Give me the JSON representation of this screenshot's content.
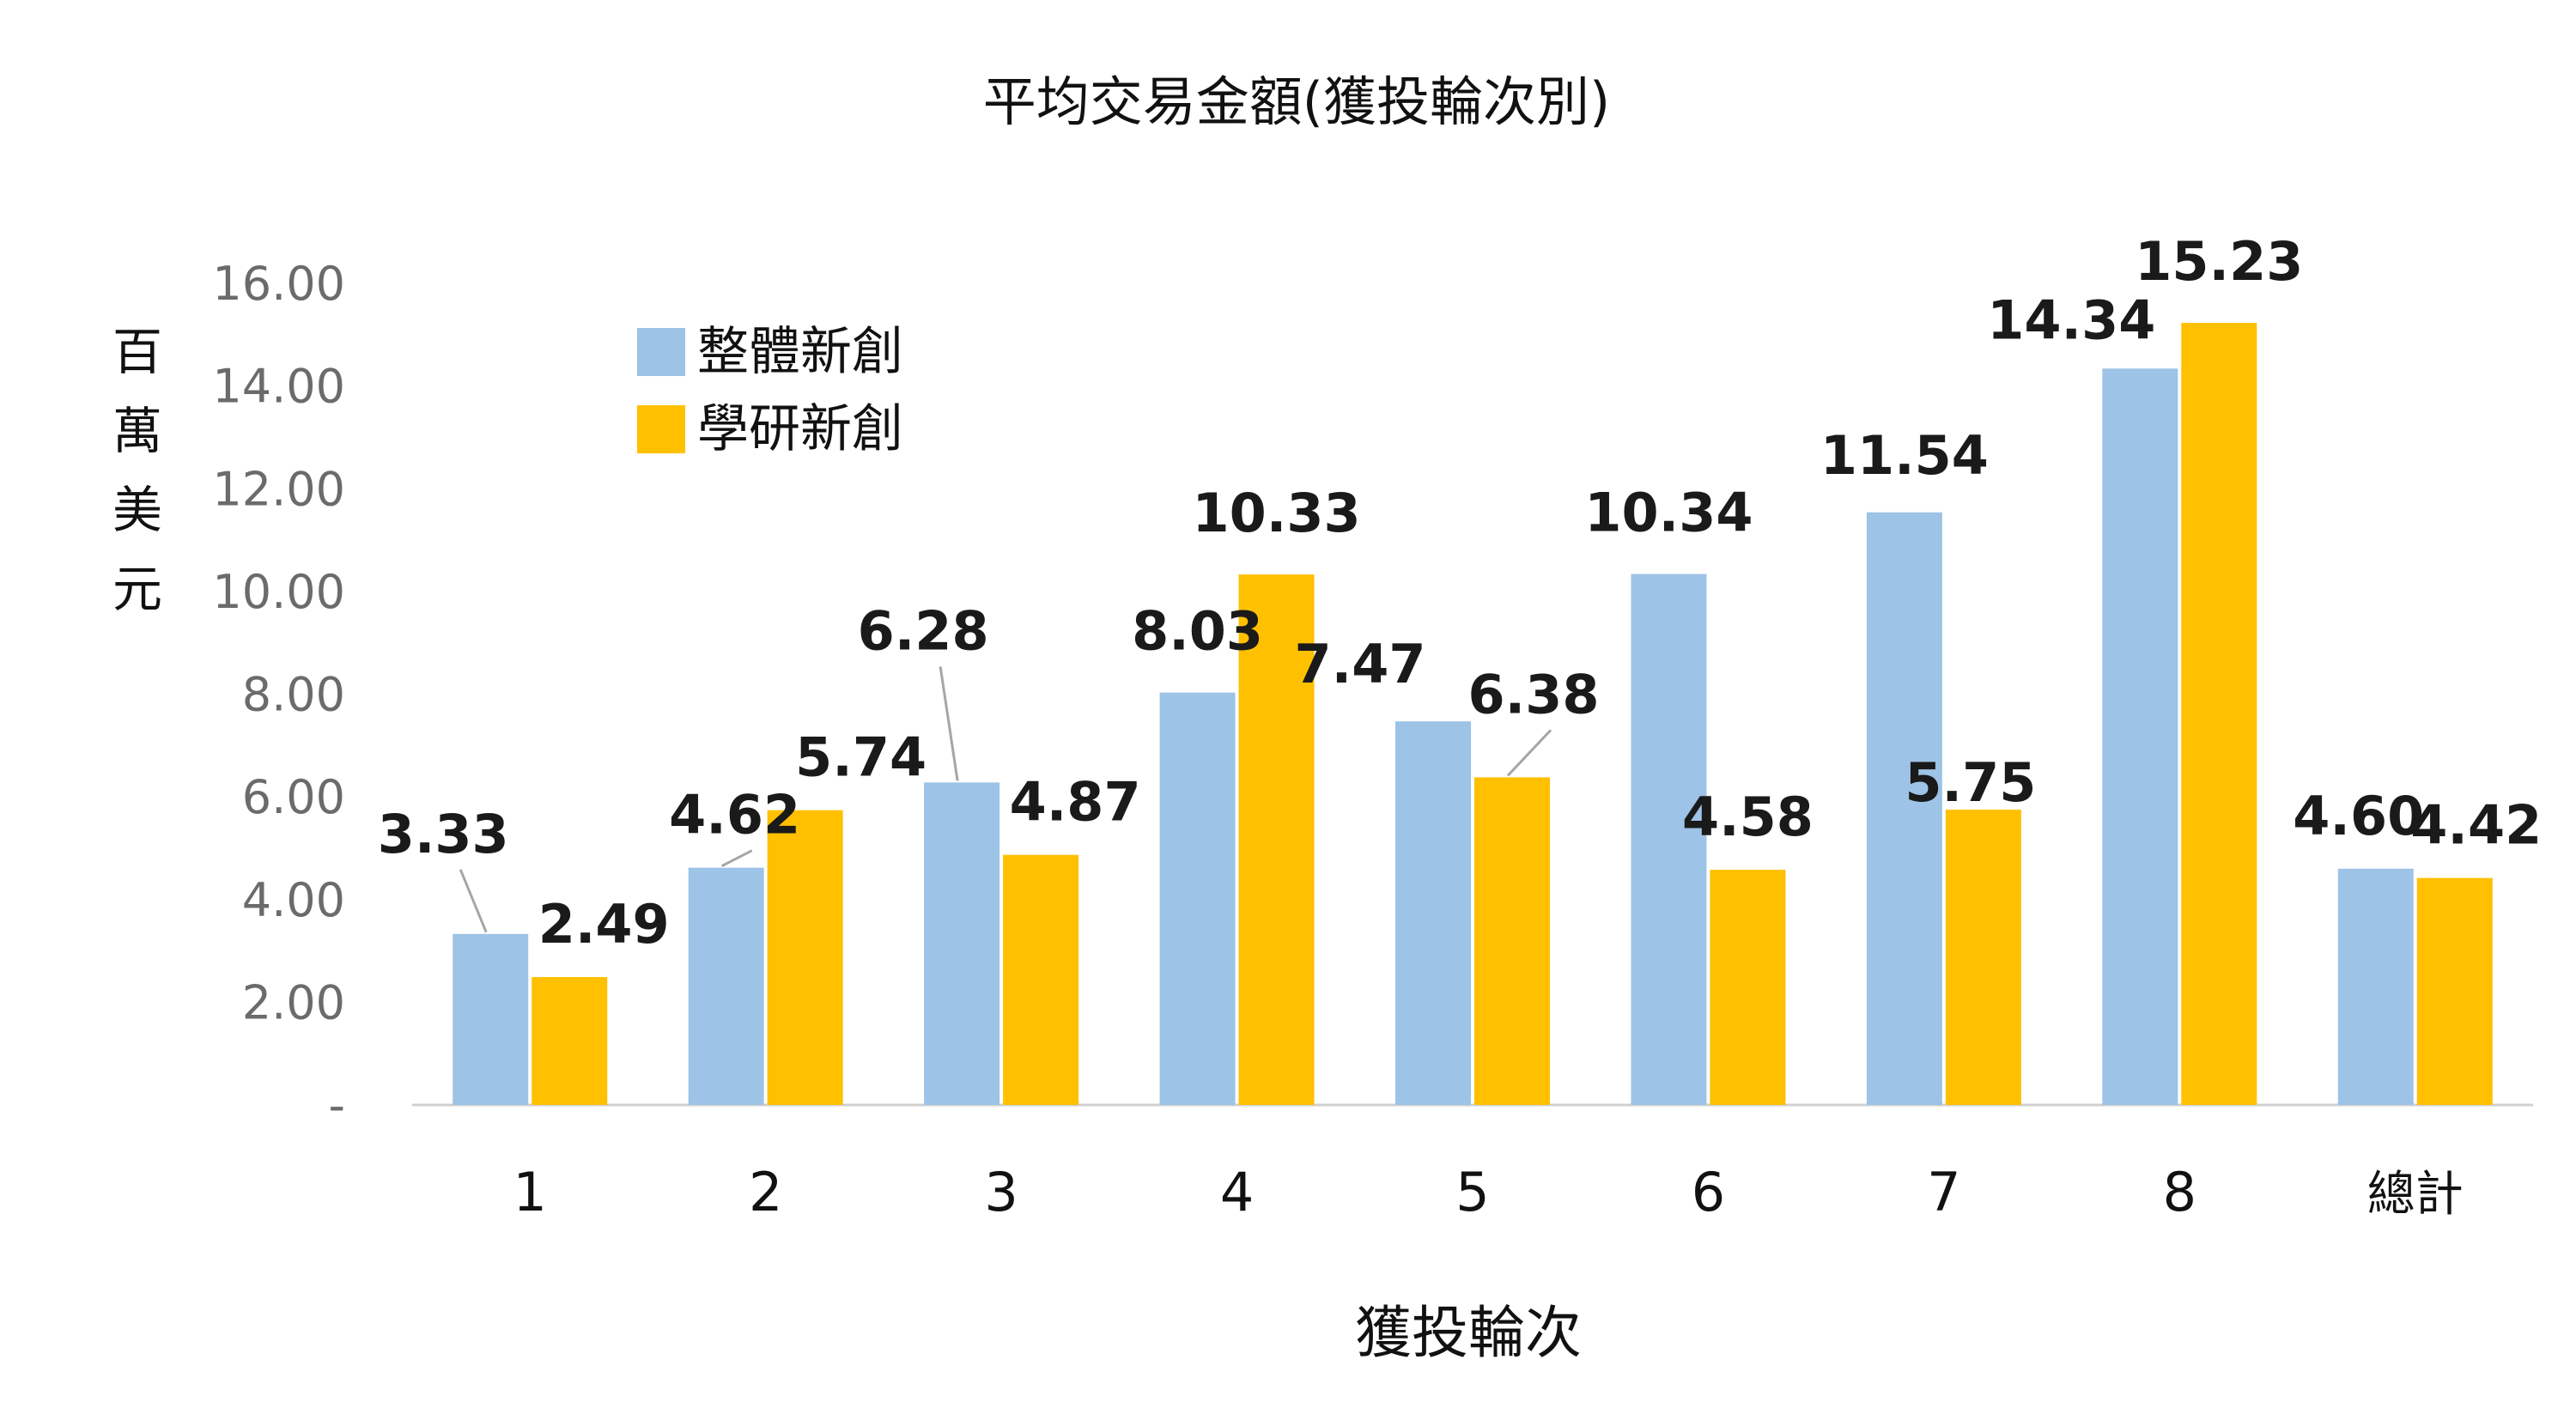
{
  "chart_data": {
    "type": "bar",
    "title": "平均交易金額(獲投輪次別)",
    "xlabel": "獲投輪次",
    "ylabel": "百萬美元",
    "categories": [
      "1",
      "2",
      "3",
      "4",
      "5",
      "6",
      "7",
      "8",
      "總計"
    ],
    "series": [
      {
        "name": "整體新創",
        "color": "#9dc3e6",
        "values": [
          3.33,
          4.62,
          6.28,
          8.03,
          7.47,
          10.34,
          11.54,
          14.34,
          4.6
        ],
        "labels": [
          "3.33",
          "4.62",
          "6.28",
          "8.03",
          "7.47",
          "10.34",
          "11.54",
          "14.34",
          "4.60"
        ]
      },
      {
        "name": "學研新創",
        "color": "#ffc000",
        "values": [
          2.49,
          5.74,
          4.87,
          10.33,
          6.38,
          4.58,
          5.75,
          15.23,
          4.42
        ],
        "labels": [
          "2.49",
          "5.74",
          "4.87",
          "10.33",
          "6.38",
          "4.58",
          "5.75",
          "15.23",
          "4.42"
        ]
      }
    ],
    "ylim": [
      0,
      16
    ],
    "yticks": [
      "-",
      "2.00",
      "4.00",
      "6.00",
      "8.00",
      "10.00",
      "12.00",
      "14.00",
      "16.00"
    ],
    "grid": false,
    "legend_position": "top-left"
  }
}
